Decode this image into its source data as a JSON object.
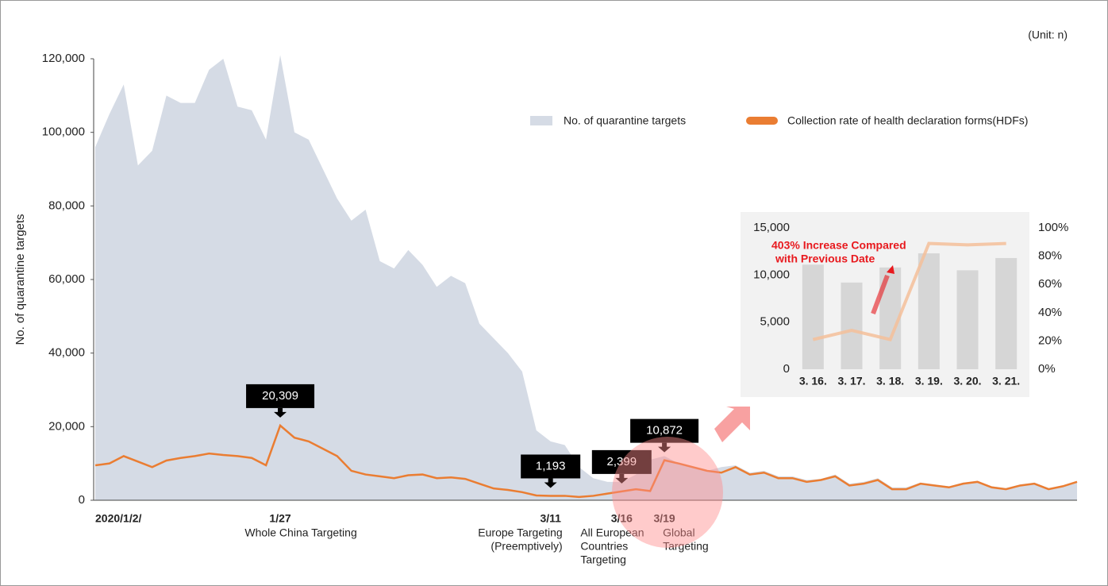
{
  "chart_data": [
    {
      "type": "area",
      "unit": "(Unit: n)",
      "ylabel": "No. of quarantine targets",
      "categories": [
        "2020/1/2/",
        null,
        null,
        null,
        null,
        null,
        null,
        null,
        null,
        null,
        null,
        null,
        null,
        "1/27",
        null,
        null,
        null,
        null,
        null,
        null,
        null,
        null,
        null,
        null,
        null,
        null,
        null,
        null,
        null,
        null,
        null,
        null,
        "3/11",
        null,
        null,
        null,
        null,
        "3/16",
        null,
        null,
        "3/19",
        null,
        null,
        null,
        null,
        null,
        null,
        null,
        null,
        null,
        null,
        null,
        null,
        null,
        null,
        null,
        null,
        null,
        null,
        null,
        null,
        null,
        null,
        null,
        null,
        null,
        null,
        null,
        null,
        null
      ],
      "ylim": [
        0,
        120000
      ],
      "yticks": [
        0,
        {
          "value": 20000,
          "label": "20,000"
        },
        {
          "value": 40000,
          "label": "40,000"
        },
        {
          "value": 60000,
          "label": "60,000"
        },
        {
          "value": 80000,
          "label": "80,000"
        },
        {
          "value": 100000,
          "label": "100,000"
        },
        {
          "value": 120000,
          "label": "120,000"
        }
      ],
      "series": [
        {
          "type": "area",
          "name": "No. of quarantine targets",
          "color": "#d5dbe5",
          "values": [
            96000,
            105000,
            113000,
            91000,
            95000,
            110000,
            108000,
            108000,
            117000,
            120000,
            107000,
            106000,
            98000,
            121000,
            100000,
            98000,
            90000,
            82000,
            76000,
            79000,
            65000,
            63000,
            68000,
            64000,
            58000,
            61000,
            59000,
            48000,
            44000,
            40000,
            35000,
            19000,
            16000,
            15000,
            9000,
            6000,
            5000,
            5000,
            7000,
            11000,
            12000,
            10000,
            9000,
            8000,
            9000,
            9500,
            7500,
            8000,
            6500,
            6500,
            5500,
            5800,
            7000,
            4500,
            5000,
            6000,
            3500,
            3500,
            4800,
            4300,
            3800,
            4800,
            5200,
            3800,
            3300,
            4300,
            4800,
            3300,
            4000,
            5200
          ]
        },
        {
          "type": "line",
          "name": "Collection rate of health declaration forms(HDFs)",
          "color": "#ea7d32",
          "values": [
            9500,
            10000,
            12000,
            10500,
            9000,
            10800,
            11500,
            12000,
            12700,
            12300,
            12000,
            11500,
            9500,
            20309,
            17000,
            16000,
            14000,
            12000,
            8000,
            7000,
            6500,
            6000,
            6800,
            7000,
            6000,
            6200,
            5800,
            4500,
            3200,
            2800,
            2200,
            1300,
            1193,
            1200,
            900,
            1200,
            1800,
            2399,
            3000,
            2500,
            10872,
            10000,
            9000,
            8000,
            7500,
            9000,
            7000,
            7500,
            6000,
            6000,
            5000,
            5500,
            6500,
            4000,
            4500,
            5500,
            3000,
            3000,
            4500,
            4000,
            3500,
            4500,
            5000,
            3500,
            3000,
            4000,
            4500,
            3000,
            3800,
            5000
          ],
          "value_labels": [
            null,
            null,
            null,
            null,
            null,
            null,
            null,
            null,
            null,
            null,
            null,
            null,
            null,
            "20,309",
            null,
            null,
            null,
            null,
            null,
            null,
            null,
            null,
            null,
            null,
            null,
            null,
            null,
            null,
            null,
            null,
            null,
            null,
            "1,193",
            null,
            null,
            null,
            null,
            "2,399",
            null,
            null,
            "10,872",
            null,
            null,
            null,
            null,
            null,
            null,
            null,
            null,
            null,
            null,
            null,
            null,
            null,
            null,
            null,
            null,
            null,
            null,
            null,
            null,
            null,
            null,
            null,
            null,
            null,
            null,
            null,
            null,
            null
          ]
        }
      ],
      "events": [
        {
          "at": "1/27",
          "lines": [
            "Whole China Targeting"
          ]
        },
        {
          "at": "3/11",
          "lines": [
            "Europe Targeting",
            "(Preemptively)"
          ]
        },
        {
          "at": "3/16",
          "lines": [
            "All European",
            "Countries",
            "Targeting"
          ]
        },
        {
          "at": "3/19",
          "lines": [
            "Global",
            "Targeting"
          ]
        }
      ]
    },
    {
      "type": "bar",
      "categories": [
        "3. 16.",
        "3. 17.",
        "3. 18.",
        "3. 19.",
        "3. 20.",
        "3. 21."
      ],
      "ylim": [
        0,
        15000
      ],
      "yticks": [
        0,
        {
          "value": 5000,
          "label": "5,000"
        },
        {
          "value": 10000,
          "label": "10,000"
        },
        {
          "value": 15000,
          "label": "15,000"
        }
      ],
      "y2lim": [
        0,
        100
      ],
      "y2ticks": [
        {
          "value": 0,
          "label": "0%"
        },
        {
          "value": 20,
          "label": "20%"
        },
        {
          "value": 40,
          "label": "40%"
        },
        {
          "value": 60,
          "label": "60%"
        },
        {
          "value": 80,
          "label": "80%"
        },
        {
          "value": 100,
          "label": "100%"
        }
      ],
      "series": [
        {
          "type": "bar",
          "color": "#d6d6d6",
          "values": [
            11100,
            9200,
            10800,
            12300,
            10500,
            11800
          ]
        },
        {
          "type": "line",
          "axis": "y2",
          "color": "#f5c09a",
          "values": [
            21,
            27.5,
            21,
            89,
            88,
            89
          ]
        }
      ],
      "annotation": {
        "lines": [
          "403% Increase Compared",
          "with Previous Date"
        ],
        "color": "#e8191e"
      }
    }
  ]
}
